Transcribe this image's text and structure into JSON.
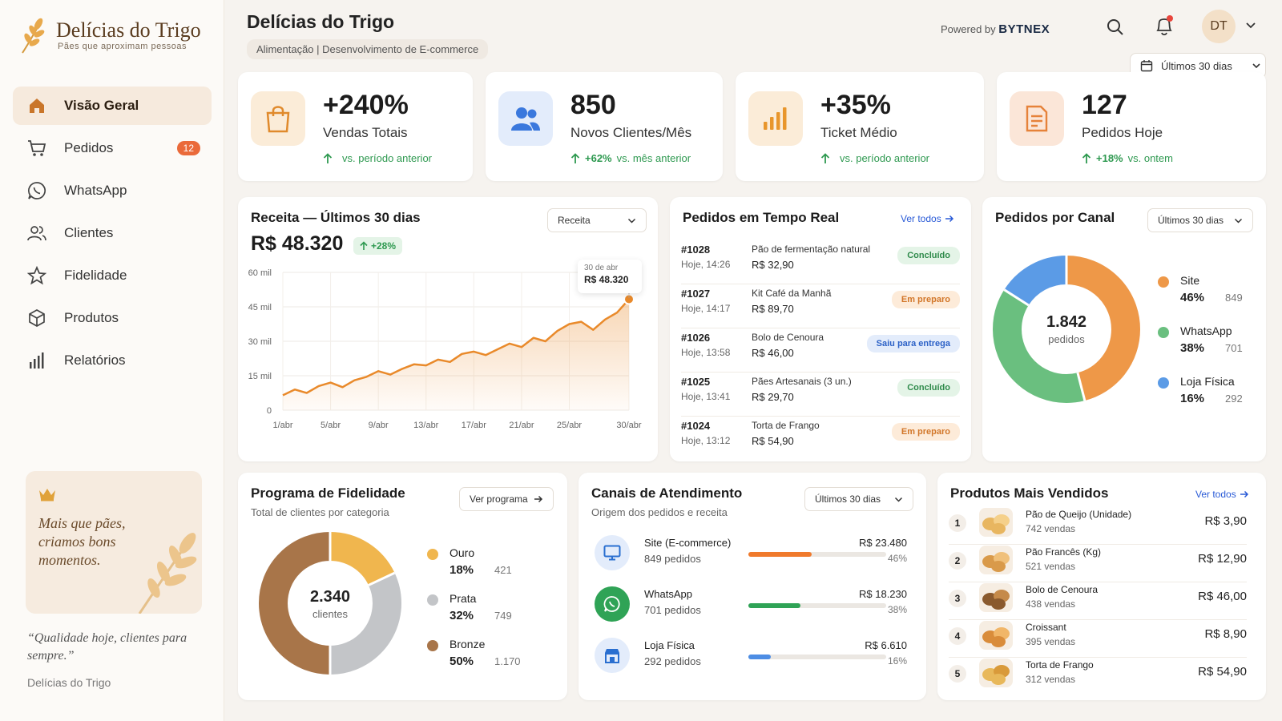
{
  "brand": {
    "name": "Delícias do Trigo",
    "tagline": "Pães que aproximam pessoas"
  },
  "nav": [
    {
      "label": "Visão Geral",
      "icon": "home-icon",
      "active": true
    },
    {
      "label": "Pedidos",
      "icon": "cart-icon",
      "badge": "12"
    },
    {
      "label": "WhatsApp",
      "icon": "whatsapp-icon"
    },
    {
      "label": "Clientes",
      "icon": "users-icon"
    },
    {
      "label": "Fidelidade",
      "icon": "star-icon"
    },
    {
      "label": "Produtos",
      "icon": "box-icon"
    },
    {
      "label": "Relatórios",
      "icon": "bar-chart-icon"
    }
  ],
  "promo": {
    "text": "Mais que pães, criamos bons momentos."
  },
  "quote": {
    "text": "“Qualidade hoje, clientes para sempre.”",
    "source": "Delícias do Trigo"
  },
  "header": {
    "title": "Delícias do Trigo",
    "subtitle": "Alimentação | Desenvolvimento de E-commerce",
    "powered_prefix": "Powered by",
    "powered_brand": "BYTNEX",
    "avatar": "DT",
    "date_range": "Últimos 30 dias"
  },
  "kpis": [
    {
      "value": "+240%",
      "label": "Vendas Totais",
      "delta": "",
      "compare": "vs. período anterior"
    },
    {
      "value": "850",
      "label": "Novos Clientes/Mês",
      "delta": "+62%",
      "compare": "vs. mês anterior"
    },
    {
      "value": "+35%",
      "label": "Ticket Médio",
      "delta": "",
      "compare": "vs. período anterior"
    },
    {
      "value": "127",
      "label": "Pedidos Hoje",
      "delta": "+18%",
      "compare": "vs. ontem"
    }
  ],
  "revenue": {
    "title": "Receita — Últimos 30 dias",
    "total": "R$ 48.320",
    "delta": "+28%",
    "dropdown": "Receita",
    "tooltip_date": "30 de abr",
    "tooltip_value": "R$ 48.320"
  },
  "chart_data": {
    "type": "area",
    "x": [
      1,
      2,
      3,
      4,
      5,
      6,
      7,
      8,
      9,
      10,
      11,
      12,
      13,
      14,
      15,
      16,
      17,
      18,
      19,
      20,
      21,
      22,
      23,
      24,
      25,
      26,
      27,
      28,
      29,
      30
    ],
    "values": [
      6500,
      9000,
      7500,
      10500,
      12000,
      10000,
      13000,
      14500,
      17000,
      15500,
      18000,
      20000,
      19500,
      22000,
      21000,
      24500,
      25500,
      24000,
      26500,
      29000,
      27500,
      31500,
      30000,
      34500,
      37500,
      38500,
      35000,
      39500,
      42500,
      48320
    ],
    "x_ticks": [
      "1/abr",
      "5/abr",
      "9/abr",
      "13/abr",
      "17/abr",
      "21/abr",
      "25/abr",
      "30/abr"
    ],
    "x_tick_positions": [
      1,
      5,
      9,
      13,
      17,
      21,
      25,
      30
    ],
    "y_ticks": [
      "0",
      "15 mil",
      "30 mil",
      "45 mil",
      "60 mil"
    ],
    "y_tick_values": [
      0,
      15000,
      30000,
      45000,
      60000
    ],
    "ylim": [
      0,
      60000
    ],
    "color": "#e98a2b",
    "grid": true
  },
  "orders": {
    "title": "Pedidos em Tempo Real",
    "link": "Ver todos",
    "rows": [
      {
        "id": "#1028",
        "time": "Hoje, 14:26",
        "product": "Pão de fermentação natural",
        "price": "R$ 32,90",
        "status": "Concluído",
        "kind": "done"
      },
      {
        "id": "#1027",
        "time": "Hoje, 14:17",
        "product": "Kit Café da Manhã",
        "price": "R$ 89,70",
        "status": "Em preparo",
        "kind": "prep"
      },
      {
        "id": "#1026",
        "time": "Hoje, 13:58",
        "product": "Bolo de Cenoura",
        "price": "R$ 46,00",
        "status": "Saiu para entrega",
        "kind": "ship"
      },
      {
        "id": "#1025",
        "time": "Hoje, 13:41",
        "product": "Pães Artesanais (3 un.)",
        "price": "R$ 29,70",
        "status": "Concluído",
        "kind": "done"
      },
      {
        "id": "#1024",
        "time": "Hoje, 13:12",
        "product": "Torta de Frango",
        "price": "R$ 54,90",
        "status": "Em preparo",
        "kind": "prep"
      }
    ]
  },
  "channels_donut": {
    "title": "Pedidos por Canal",
    "dropdown": "Últimos 30 dias",
    "center_value": "1.842",
    "center_label": "pedidos",
    "items": [
      {
        "name": "Site",
        "pct": "46%",
        "count": "849",
        "share": 46,
        "color": "#ee9848"
      },
      {
        "name": "WhatsApp",
        "pct": "38%",
        "count": "701",
        "share": 38,
        "color": "#6abf7f"
      },
      {
        "name": "Loja Física",
        "pct": "16%",
        "count": "292",
        "share": 16,
        "color": "#5b9be6"
      }
    ]
  },
  "loyalty": {
    "title": "Programa de Fidelidade",
    "subtitle": "Total de clientes por categoria",
    "button": "Ver programa",
    "center_value": "2.340",
    "center_label": "clientes",
    "items": [
      {
        "name": "Ouro",
        "pct": "18%",
        "count": "421",
        "share": 18,
        "color": "#f0b64e"
      },
      {
        "name": "Prata",
        "pct": "32%",
        "count": "749",
        "share": 32,
        "color": "#c3c5c8"
      },
      {
        "name": "Bronze",
        "pct": "50%",
        "count": "1.170",
        "share": 50,
        "color": "#a87549"
      }
    ]
  },
  "service": {
    "title": "Canais de Atendimento",
    "subtitle": "Origem dos pedidos e receita",
    "dropdown": "Últimos 30 dias",
    "rows": [
      {
        "name": "Site (E-commerce)",
        "orders": "849 pedidos",
        "revenue": "R$ 23.480",
        "pct": "46%",
        "share": 46,
        "color": "#f07a2c",
        "icon": "monitor-icon"
      },
      {
        "name": "WhatsApp",
        "orders": "701 pedidos",
        "revenue": "R$ 18.230",
        "pct": "38%",
        "share": 38,
        "color": "#2fa356",
        "icon": "whatsapp-icon"
      },
      {
        "name": "Loja Física",
        "orders": "292 pedidos",
        "revenue": "R$ 6.610",
        "pct": "16%",
        "share": 16,
        "color": "#4d8de4",
        "icon": "store-icon"
      }
    ]
  },
  "top_products": {
    "title": "Produtos Mais Vendidos",
    "link": "Ver todos",
    "rows": [
      {
        "rank": "1",
        "name": "Pão de Queijo (Unidade)",
        "sales": "742 vendas",
        "price": "R$ 3,90"
      },
      {
        "rank": "2",
        "name": "Pão Francês (Kg)",
        "sales": "521 vendas",
        "price": "R$ 12,90"
      },
      {
        "rank": "3",
        "name": "Bolo de Cenoura",
        "sales": "438 vendas",
        "price": "R$ 46,00"
      },
      {
        "rank": "4",
        "name": "Croissant",
        "sales": "395 vendas",
        "price": "R$ 8,90"
      },
      {
        "rank": "5",
        "name": "Torta de Frango",
        "sales": "312 vendas",
        "price": "R$ 54,90"
      }
    ]
  }
}
